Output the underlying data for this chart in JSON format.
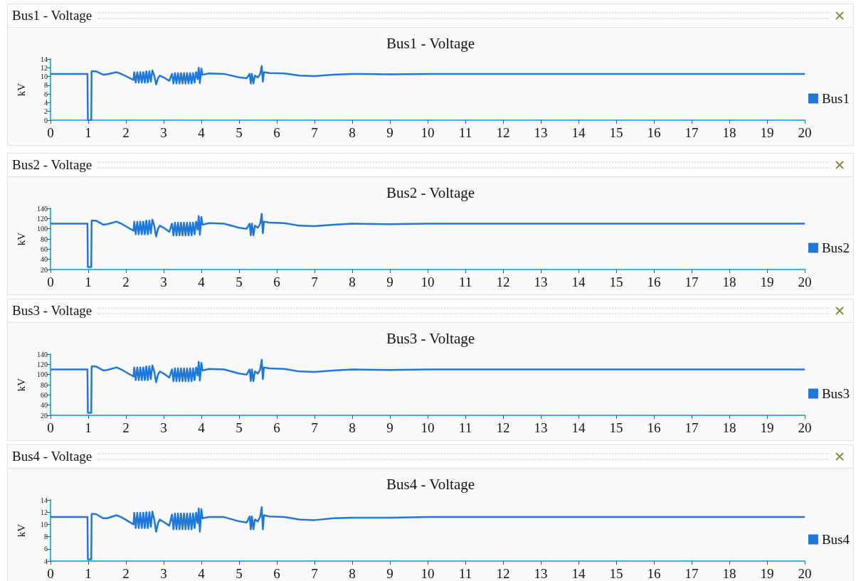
{
  "chart_data": [
    {
      "type": "line",
      "title": "Bus1 - Voltage",
      "annotations": [
        "Bus1 - Voltage"
      ],
      "ylabel": "kV",
      "legend": "right",
      "grid": false,
      "marker": "none",
      "line_style": "solid",
      "x": [
        0,
        0.98,
        0.99,
        1.08,
        1.09,
        1.2,
        1.4,
        1.5,
        1.75,
        1.9,
        2.2,
        2.22,
        2.26,
        2.3,
        2.34,
        2.38,
        2.42,
        2.46,
        2.5,
        2.54,
        2.58,
        2.62,
        2.66,
        2.7,
        2.75,
        2.8,
        2.85,
        2.9,
        3.0,
        3.15,
        3.22,
        3.26,
        3.3,
        3.34,
        3.38,
        3.42,
        3.46,
        3.5,
        3.54,
        3.58,
        3.62,
        3.66,
        3.7,
        3.74,
        3.78,
        3.82,
        3.86,
        3.9,
        3.93,
        3.96,
        4.0,
        4.03,
        4.2,
        4.6,
        5.0,
        5.2,
        5.28,
        5.31,
        5.34,
        5.38,
        5.42,
        5.5,
        5.56,
        5.6,
        5.63,
        5.66,
        5.8,
        6.2,
        6.6,
        7.0,
        7.5,
        8,
        9,
        10,
        20
      ],
      "series": [
        {
          "name": "Bus1",
          "color": "#1f78d8",
          "values": [
            10.6,
            10.6,
            0,
            0,
            11.2,
            11.2,
            10.4,
            10.5,
            11.0,
            10.5,
            9.2,
            11,
            8.6,
            11,
            8.6,
            11,
            8.6,
            11,
            8.6,
            11.2,
            8.6,
            11.2,
            8.8,
            11.4,
            10.2,
            8.2,
            9.6,
            10.2,
            9.8,
            9.0,
            10.6,
            8.4,
            10.8,
            8.4,
            10.8,
            8.4,
            10.8,
            8.4,
            10.8,
            8.4,
            10.8,
            8.4,
            10.8,
            8.4,
            10.8,
            8.6,
            11,
            9.4,
            12,
            8.5,
            11.8,
            10.4,
            10.7,
            10.6,
            9.8,
            9.6,
            10.6,
            8.4,
            10.6,
            8.4,
            10.2,
            9.8,
            10.6,
            12.4,
            8.8,
            11,
            10.8,
            10.7,
            10.2,
            10.1,
            10.4,
            10.6,
            10.5,
            10.6,
            10.6
          ]
        }
      ],
      "xlim": [
        0,
        20
      ],
      "xticks": [
        0,
        1,
        2,
        3,
        4,
        5,
        6,
        7,
        8,
        9,
        10,
        11,
        12,
        13,
        14,
        15,
        16,
        17,
        18,
        19,
        20
      ],
      "ylim": [
        0,
        14
      ],
      "yticks": [
        0,
        2,
        4,
        6,
        8,
        10,
        12,
        14
      ]
    },
    {
      "type": "line",
      "title": "Bus2 - Voltage",
      "annotations": [
        "Bus2 - Voltage"
      ],
      "ylabel": "kV",
      "legend": "right",
      "grid": false,
      "marker": "none",
      "line_style": "solid",
      "x": [
        0,
        0.98,
        0.99,
        1.08,
        1.09,
        1.2,
        1.4,
        1.5,
        1.75,
        1.9,
        2.2,
        2.22,
        2.26,
        2.3,
        2.34,
        2.38,
        2.42,
        2.46,
        2.5,
        2.54,
        2.58,
        2.62,
        2.66,
        2.7,
        2.75,
        2.8,
        2.85,
        2.9,
        3.0,
        3.15,
        3.22,
        3.26,
        3.3,
        3.34,
        3.38,
        3.42,
        3.46,
        3.5,
        3.54,
        3.58,
        3.62,
        3.66,
        3.7,
        3.74,
        3.78,
        3.82,
        3.86,
        3.9,
        3.93,
        3.96,
        4.0,
        4.03,
        4.2,
        4.6,
        5.0,
        5.2,
        5.28,
        5.31,
        5.34,
        5.38,
        5.42,
        5.5,
        5.56,
        5.6,
        5.63,
        5.66,
        5.8,
        6.2,
        6.6,
        7.0,
        7.5,
        8,
        9,
        10,
        20
      ],
      "series": [
        {
          "name": "Bus2",
          "color": "#1f78d8",
          "values": [
            110,
            110,
            25,
            25,
            116,
            116,
            108,
            109,
            114,
            109,
            96,
            114,
            89,
            114,
            89,
            114,
            89,
            114,
            89,
            116,
            89,
            116,
            91,
            118,
            106,
            85,
            100,
            106,
            102,
            94,
            110,
            87,
            112,
            87,
            112,
            87,
            112,
            87,
            112,
            87,
            112,
            87,
            112,
            87,
            112,
            89,
            114,
            98,
            125,
            88,
            123,
            108,
            111,
            110,
            102,
            100,
            110,
            87,
            110,
            87,
            106,
            102,
            110,
            129,
            91,
            114,
            112,
            111,
            106,
            105,
            108,
            110,
            109,
            110,
            110
          ]
        }
      ],
      "xlim": [
        0,
        20
      ],
      "xticks": [
        0,
        1,
        2,
        3,
        4,
        5,
        6,
        7,
        8,
        9,
        10,
        11,
        12,
        13,
        14,
        15,
        16,
        17,
        18,
        19,
        20
      ],
      "ylim": [
        20,
        140
      ],
      "yticks": [
        20,
        40,
        60,
        80,
        100,
        120,
        140
      ]
    },
    {
      "type": "line",
      "title": "Bus3 - Voltage",
      "annotations": [
        "Bus3 - Voltage"
      ],
      "ylabel": "kV",
      "legend": "right",
      "grid": false,
      "marker": "none",
      "line_style": "solid",
      "x": [
        0,
        0.98,
        0.99,
        1.08,
        1.09,
        1.2,
        1.4,
        1.5,
        1.75,
        1.9,
        2.2,
        2.22,
        2.26,
        2.3,
        2.34,
        2.38,
        2.42,
        2.46,
        2.5,
        2.54,
        2.58,
        2.62,
        2.66,
        2.7,
        2.75,
        2.8,
        2.85,
        2.9,
        3.0,
        3.15,
        3.22,
        3.26,
        3.3,
        3.34,
        3.38,
        3.42,
        3.46,
        3.5,
        3.54,
        3.58,
        3.62,
        3.66,
        3.7,
        3.74,
        3.78,
        3.82,
        3.86,
        3.9,
        3.93,
        3.96,
        4.0,
        4.03,
        4.2,
        4.6,
        5.0,
        5.2,
        5.28,
        5.31,
        5.34,
        5.38,
        5.42,
        5.5,
        5.56,
        5.6,
        5.63,
        5.66,
        5.8,
        6.2,
        6.6,
        7.0,
        7.5,
        8,
        9,
        10,
        20
      ],
      "series": [
        {
          "name": "Bus3",
          "color": "#1f78d8",
          "values": [
            110,
            110,
            25,
            25,
            116,
            116,
            108,
            109,
            114,
            109,
            96,
            114,
            89,
            114,
            89,
            114,
            89,
            114,
            89,
            116,
            89,
            116,
            91,
            118,
            106,
            85,
            100,
            106,
            102,
            94,
            110,
            87,
            112,
            87,
            112,
            87,
            112,
            87,
            112,
            87,
            112,
            87,
            112,
            87,
            112,
            89,
            114,
            98,
            125,
            88,
            123,
            108,
            111,
            110,
            102,
            100,
            110,
            87,
            110,
            87,
            106,
            102,
            110,
            129,
            91,
            114,
            112,
            111,
            106,
            105,
            108,
            110,
            109,
            110,
            110
          ]
        }
      ],
      "xlim": [
        0,
        20
      ],
      "xticks": [
        0,
        1,
        2,
        3,
        4,
        5,
        6,
        7,
        8,
        9,
        10,
        11,
        12,
        13,
        14,
        15,
        16,
        17,
        18,
        19,
        20
      ],
      "ylim": [
        20,
        140
      ],
      "yticks": [
        20,
        40,
        60,
        80,
        100,
        120,
        140
      ]
    },
    {
      "type": "line",
      "title": "Bus4 - Voltage",
      "annotations": [
        "Bus4 - Voltage"
      ],
      "ylabel": "kV",
      "legend": "right",
      "grid": false,
      "marker": "none",
      "line_style": "solid",
      "x": [
        0,
        0.98,
        0.99,
        1.08,
        1.09,
        1.2,
        1.4,
        1.5,
        1.75,
        1.9,
        2.2,
        2.22,
        2.26,
        2.3,
        2.34,
        2.38,
        2.42,
        2.46,
        2.5,
        2.54,
        2.58,
        2.62,
        2.66,
        2.7,
        2.75,
        2.8,
        2.85,
        2.9,
        3.0,
        3.15,
        3.22,
        3.26,
        3.3,
        3.34,
        3.38,
        3.42,
        3.46,
        3.5,
        3.54,
        3.58,
        3.62,
        3.66,
        3.7,
        3.74,
        3.78,
        3.82,
        3.86,
        3.9,
        3.93,
        3.96,
        4.0,
        4.03,
        4.2,
        4.6,
        5.0,
        5.2,
        5.28,
        5.31,
        5.34,
        5.38,
        5.42,
        5.5,
        5.56,
        5.6,
        5.63,
        5.66,
        5.8,
        6.2,
        6.6,
        7.0,
        7.5,
        8,
        9,
        10,
        20
      ],
      "series": [
        {
          "name": "Bus4",
          "color": "#1f78d8",
          "values": [
            11.2,
            11.2,
            4.3,
            4.3,
            11.7,
            11.7,
            11.0,
            11.0,
            11.5,
            11.1,
            10.0,
            11.9,
            9.4,
            11.9,
            9.4,
            11.9,
            9.4,
            11.9,
            9.4,
            12.0,
            9.4,
            12.0,
            9.6,
            12.1,
            10.8,
            8.8,
            10.2,
            10.8,
            10.4,
            9.8,
            11.6,
            9.2,
            11.8,
            9.2,
            11.8,
            9.2,
            11.8,
            9.2,
            11.8,
            9.2,
            11.8,
            9.2,
            11.8,
            9.2,
            11.8,
            9.4,
            11.9,
            10.2,
            12.6,
            8.8,
            12.5,
            11.0,
            11.2,
            11.2,
            10.5,
            10.3,
            11.3,
            9.2,
            11.3,
            9.2,
            10.8,
            10.5,
            11.3,
            12.8,
            9.2,
            11.5,
            11.3,
            11.2,
            10.8,
            10.7,
            11.0,
            11.1,
            11.1,
            11.2,
            11.2
          ]
        }
      ],
      "xlim": [
        0,
        20
      ],
      "xticks": [
        0,
        1,
        2,
        3,
        4,
        5,
        6,
        7,
        8,
        9,
        10,
        11,
        12,
        13,
        14,
        15,
        16,
        17,
        18,
        19,
        20
      ],
      "ylim": [
        4,
        14
      ],
      "yticks": [
        4,
        6,
        8,
        10,
        12,
        14
      ]
    }
  ]
}
